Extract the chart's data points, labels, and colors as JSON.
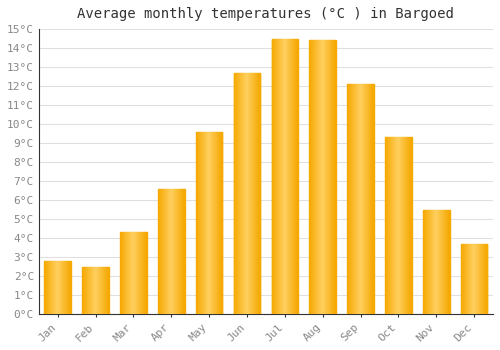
{
  "months": [
    "Jan",
    "Feb",
    "Mar",
    "Apr",
    "May",
    "Jun",
    "Jul",
    "Aug",
    "Sep",
    "Oct",
    "Nov",
    "Dec"
  ],
  "values": [
    2.8,
    2.5,
    4.3,
    6.6,
    9.6,
    12.7,
    14.5,
    14.4,
    12.1,
    9.3,
    5.5,
    3.7
  ],
  "bar_color_outer": "#F5A800",
  "bar_color_inner": "#FFD060",
  "title": "Average monthly temperatures (°C ) in Bargoed",
  "ylim": [
    0,
    15
  ],
  "yticks": [
    0,
    1,
    2,
    3,
    4,
    5,
    6,
    7,
    8,
    9,
    10,
    11,
    12,
    13,
    14,
    15
  ],
  "ytick_labels": [
    "0°C",
    "1°C",
    "2°C",
    "3°C",
    "4°C",
    "5°C",
    "6°C",
    "7°C",
    "8°C",
    "9°C",
    "10°C",
    "11°C",
    "12°C",
    "13°C",
    "14°C",
    "15°C"
  ],
  "background_color": "#FFFFFF",
  "grid_color": "#E0E0E0",
  "title_fontsize": 10,
  "tick_fontsize": 8,
  "title_color": "#333333",
  "tick_color": "#888888"
}
